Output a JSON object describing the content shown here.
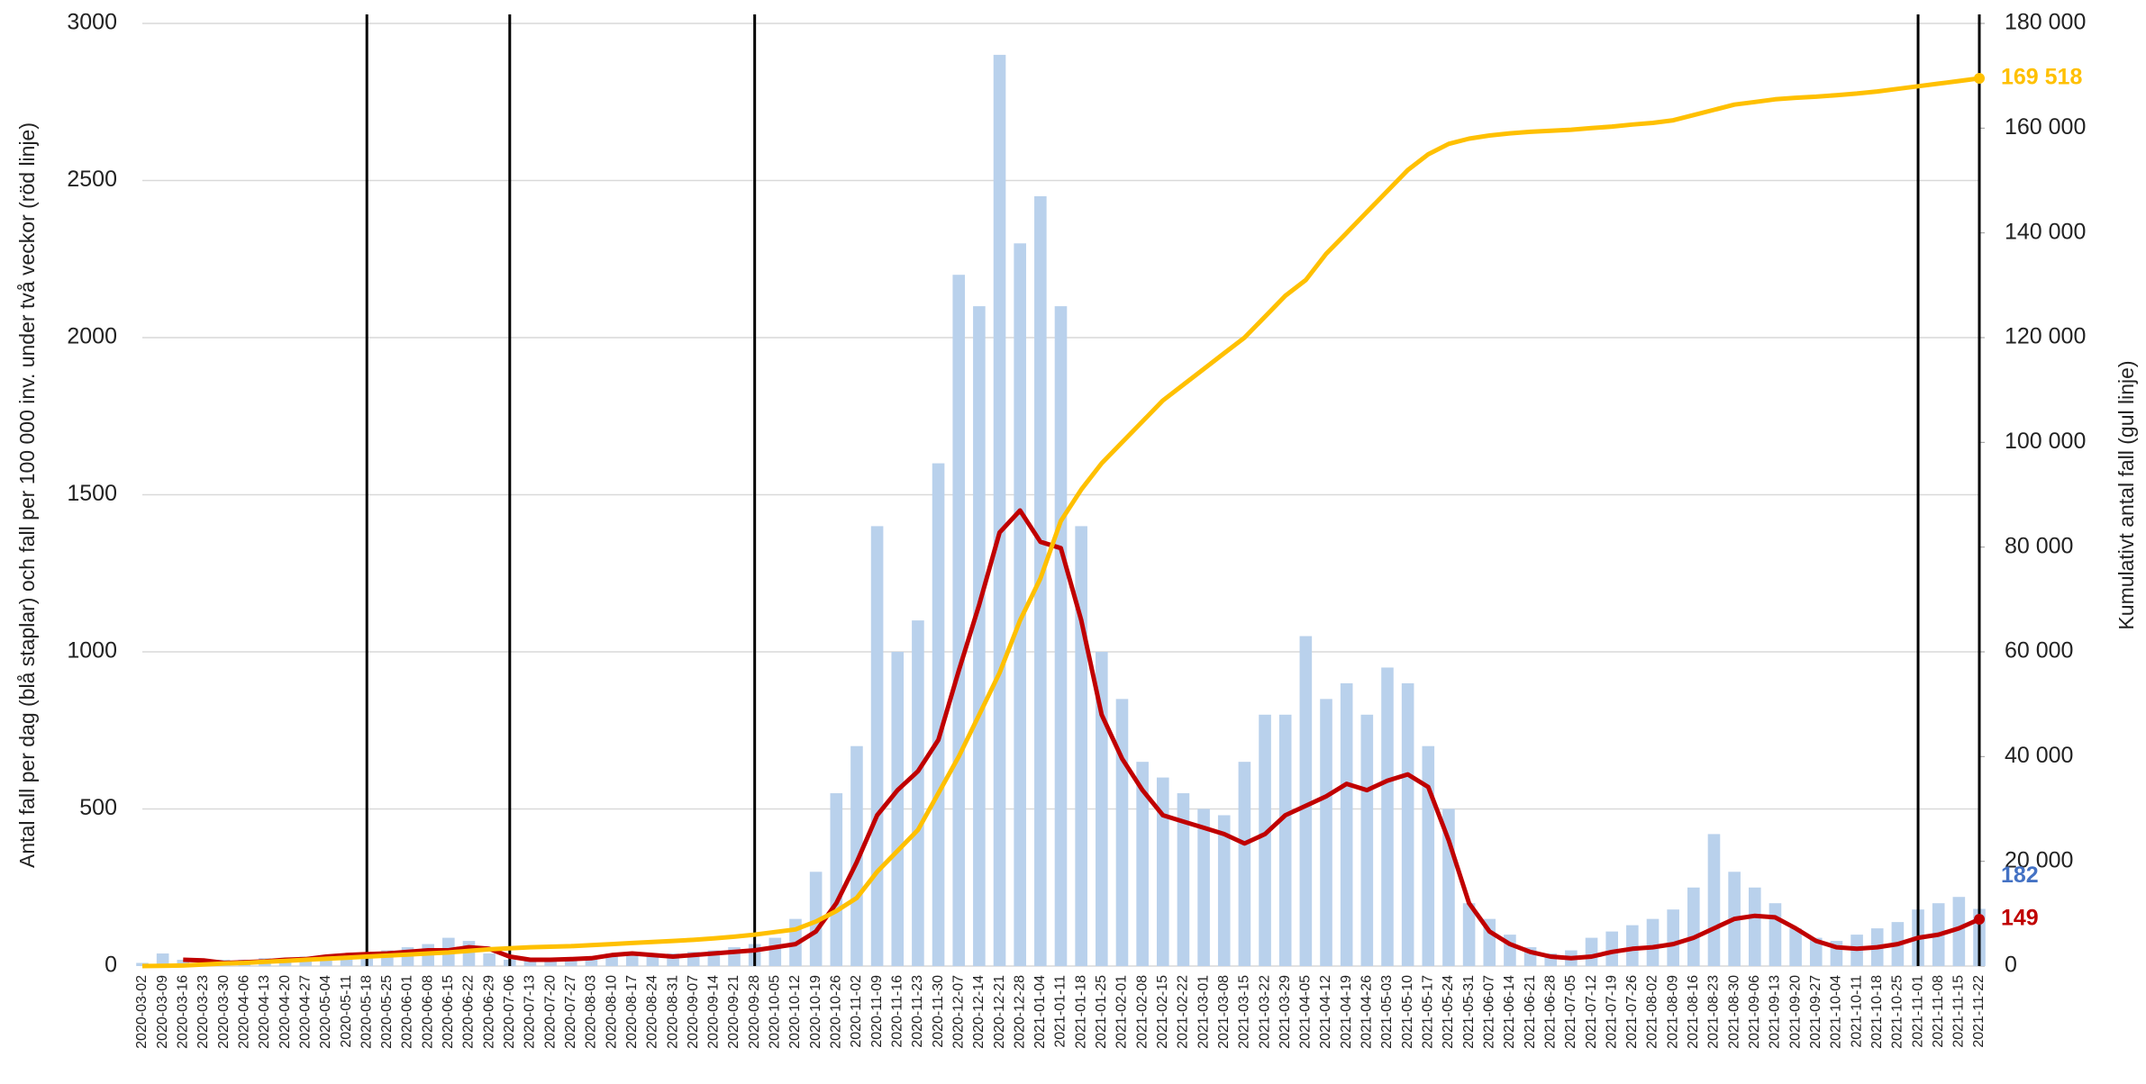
{
  "chart_data": {
    "type": "combo",
    "y_label": "Antal fall per dag (blå staplar) och fall per 100 000 inv. under två veckor (röd linje)",
    "y2_label": "Kumulativt antal fall (gul linje)",
    "x": [
      "2020-03-02",
      "2020-03-09",
      "2020-03-16",
      "2020-03-23",
      "2020-03-30",
      "2020-04-06",
      "2020-04-13",
      "2020-04-20",
      "2020-04-27",
      "2020-05-04",
      "2020-05-11",
      "2020-05-18",
      "2020-05-25",
      "2020-06-01",
      "2020-06-08",
      "2020-06-15",
      "2020-06-22",
      "2020-06-29",
      "2020-07-06",
      "2020-07-13",
      "2020-07-20",
      "2020-07-27",
      "2020-08-03",
      "2020-08-10",
      "2020-08-17",
      "2020-08-24",
      "2020-08-31",
      "2020-09-07",
      "2020-09-14",
      "2020-09-21",
      "2020-09-28",
      "2020-10-05",
      "2020-10-12",
      "2020-10-19",
      "2020-10-26",
      "2020-11-02",
      "2020-11-09",
      "2020-11-16",
      "2020-11-23",
      "2020-11-30",
      "2020-12-07",
      "2020-12-14",
      "2020-12-21",
      "2020-12-28",
      "2021-01-04",
      "2021-01-11",
      "2021-01-18",
      "2021-01-25",
      "2021-02-01",
      "2021-02-08",
      "2021-02-15",
      "2021-02-22",
      "2021-03-01",
      "2021-03-08",
      "2021-03-15",
      "2021-03-22",
      "2021-03-29",
      "2021-04-05",
      "2021-04-12",
      "2021-04-19",
      "2021-04-26",
      "2021-05-03",
      "2021-05-10",
      "2021-05-17",
      "2021-05-24",
      "2021-05-31",
      "2021-06-07",
      "2021-06-14",
      "2021-06-21",
      "2021-06-28",
      "2021-07-05",
      "2021-07-12",
      "2021-07-19",
      "2021-07-26",
      "2021-08-02",
      "2021-08-09",
      "2021-08-16",
      "2021-08-23",
      "2021-08-30",
      "2021-09-06",
      "2021-09-13",
      "2021-09-20",
      "2021-09-27",
      "2021-10-04",
      "2021-10-11",
      "2021-10-18",
      "2021-10-25",
      "2021-11-01",
      "2021-11-08",
      "2021-11-15",
      "2021-11-22"
    ],
    "series": [
      {
        "type": "bar",
        "color": "#b9d1ec",
        "label_color": "#4472c4",
        "values": [
          10,
          40,
          20,
          15,
          20,
          20,
          25,
          25,
          30,
          30,
          35,
          40,
          50,
          60,
          70,
          90,
          80,
          40,
          20,
          20,
          25,
          25,
          30,
          40,
          40,
          30,
          40,
          45,
          50,
          60,
          70,
          90,
          150,
          300,
          550,
          700,
          1400,
          1000,
          1100,
          1600,
          2200,
          2100,
          2900,
          2300,
          2450,
          2100,
          1400,
          1000,
          850,
          650,
          600,
          550,
          500,
          480,
          650,
          800,
          800,
          1050,
          850,
          900,
          800,
          950,
          900,
          700,
          500,
          200,
          150,
          100,
          60,
          40,
          50,
          90,
          110,
          130,
          150,
          180,
          250,
          420,
          300,
          250,
          200,
          120,
          90,
          80,
          100,
          120,
          140,
          180,
          200,
          220,
          182
        ]
      },
      {
        "type": "line",
        "color": "#c00000",
        "values": [
          null,
          null,
          20,
          18,
          10,
          12,
          15,
          20,
          22,
          30,
          35,
          38,
          40,
          45,
          50,
          50,
          60,
          55,
          30,
          20,
          20,
          22,
          25,
          35,
          40,
          35,
          30,
          35,
          40,
          45,
          50,
          60,
          70,
          110,
          200,
          330,
          480,
          560,
          620,
          720,
          940,
          1150,
          1380,
          1450,
          1350,
          1330,
          1100,
          800,
          660,
          560,
          480,
          460,
          440,
          420,
          390,
          420,
          480,
          510,
          540,
          580,
          560,
          590,
          610,
          570,
          400,
          200,
          110,
          70,
          45,
          30,
          25,
          30,
          45,
          55,
          60,
          70,
          90,
          120,
          150,
          160,
          155,
          120,
          80,
          60,
          55,
          60,
          70,
          90,
          100,
          120,
          149
        ]
      },
      {
        "type": "line",
        "axis": "y2",
        "color": "#ffc000",
        "last_value_label": "169 518",
        "values": [
          0,
          50,
          100,
          300,
          500,
          600,
          800,
          1000,
          1200,
          1400,
          1600,
          1800,
          2000,
          2200,
          2400,
          2600,
          2900,
          3200,
          3400,
          3600,
          3700,
          3800,
          4000,
          4200,
          4400,
          4600,
          4800,
          5000,
          5300,
          5600,
          6000,
          6500,
          7000,
          8500,
          10500,
          13000,
          18000,
          22000,
          26000,
          33000,
          40000,
          48000,
          56000,
          66000,
          74000,
          85000,
          91000,
          96000,
          100000,
          104000,
          108000,
          111000,
          114000,
          117000,
          120000,
          124000,
          128000,
          131000,
          136000,
          140000,
          144000,
          148000,
          152000,
          155000,
          157000,
          158000,
          158600,
          159000,
          159300,
          159500,
          159700,
          160000,
          160300,
          160700,
          161000,
          161500,
          162500,
          163500,
          164500,
          165000,
          165500,
          165800,
          166000,
          166300,
          166600,
          167000,
          167500,
          168000,
          168500,
          169000,
          169518
        ]
      }
    ],
    "reference_lines": [
      "2020-05-18",
      "2020-07-06",
      "2020-09-28",
      "2021-11-01",
      "2021-11-22"
    ],
    "ylim": [
      0,
      3000
    ],
    "yticks": [
      0,
      500,
      1000,
      1500,
      2000,
      2500,
      3000
    ],
    "y2lim": [
      0,
      180000
    ],
    "y2ticks": [
      0,
      {
        "value": 20000,
        "label": "20 000"
      },
      {
        "value": 40000,
        "label": "40 000"
      },
      {
        "value": 60000,
        "label": "60 000"
      },
      {
        "value": 80000,
        "label": "80 000"
      },
      {
        "value": 100000,
        "label": "100 000"
      },
      {
        "value": 120000,
        "label": "120 000"
      },
      {
        "value": 140000,
        "label": "140 000"
      },
      {
        "value": 160000,
        "label": "160 000"
      },
      {
        "value": 180000,
        "label": "180 000"
      }
    ],
    "grid": true
  }
}
